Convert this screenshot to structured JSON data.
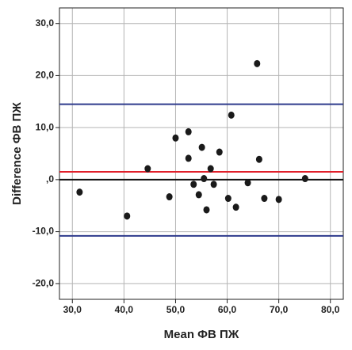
{
  "chart_data": {
    "type": "scatter",
    "x_label": "Mean ФВ ПЖ",
    "y_label": "Difference ФВ ПЖ",
    "xlim": [
      27.5,
      82.5
    ],
    "ylim": [
      -23,
      33
    ],
    "xticks": [
      {
        "value": 30,
        "label": "30,0"
      },
      {
        "value": 40,
        "label": "40,0"
      },
      {
        "value": 50,
        "label": "50,0"
      },
      {
        "value": 60,
        "label": "60,0"
      },
      {
        "value": 70,
        "label": "70,0"
      },
      {
        "value": 80,
        "label": "80,0"
      }
    ],
    "yticks": [
      {
        "value": -20,
        "label": "-20,0"
      },
      {
        "value": -10,
        "label": "-10,0"
      },
      {
        "value": 0,
        "label": ",0"
      },
      {
        "value": 10,
        "label": "10,0"
      },
      {
        "value": 20,
        "label": "20,0"
      },
      {
        "value": 30,
        "label": "30,0"
      }
    ],
    "grid": true,
    "color": "#1a1a1a",
    "x": [
      31.4,
      40.6,
      44.6,
      48.8,
      50.0,
      52.5,
      52.5,
      53.5,
      55.1,
      54.5,
      55.5,
      56.0,
      56.8,
      57.4,
      58.5,
      60.2,
      60.8,
      61.7,
      64.0,
      65.8,
      66.2,
      67.2,
      70.0,
      75.1
    ],
    "values": [
      -2.4,
      -7.0,
      2.1,
      -3.3,
      8.0,
      9.2,
      4.1,
      -0.9,
      6.2,
      -2.9,
      0.2,
      -5.8,
      2.1,
      -0.9,
      5.3,
      -3.6,
      12.4,
      -5.3,
      -0.6,
      22.3,
      3.9,
      -3.6,
      -3.8,
      0.2
    ],
    "hlines": [
      {
        "value": 14.5,
        "color": "#2e3a8c"
      },
      {
        "value": 1.5,
        "color": "#e0202a"
      },
      {
        "value": 0,
        "color": "#111111"
      },
      {
        "value": -10.8,
        "color": "#2e3a8c"
      }
    ]
  }
}
